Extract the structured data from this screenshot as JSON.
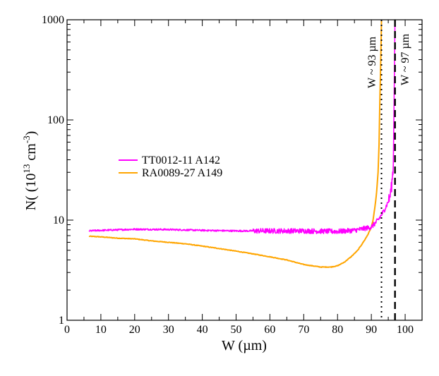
{
  "chart_data": {
    "type": "line",
    "yscale": "log",
    "xlim": [
      0,
      105
    ],
    "ylim": [
      1,
      1000
    ],
    "xticks": [
      0,
      10,
      20,
      30,
      40,
      50,
      60,
      70,
      80,
      90,
      100
    ],
    "yticks": [
      1,
      10,
      100,
      1000
    ],
    "xlabel": "W (µm)",
    "ylabel": {
      "prefix": "N( (10",
      "exp1": "13",
      "mid": " cm",
      "exp2": "-3",
      "suffix": ")"
    },
    "legend_position": "center-left",
    "series": [
      {
        "name": "TT0012-11 A142",
        "color": "#ff00ff",
        "noisy": true,
        "x": [
          6.5,
          10,
          15,
          20,
          30,
          40,
          50,
          60,
          70,
          80,
          85,
          90,
          92,
          93.5,
          94.5,
          95.5,
          96,
          96.5,
          97
        ],
        "y": [
          7.8,
          7.9,
          8.0,
          8.1,
          8.05,
          7.9,
          7.8,
          7.8,
          7.8,
          7.7,
          7.9,
          8.5,
          10,
          12,
          14,
          17,
          22,
          35,
          1000
        ]
      },
      {
        "name": "RA0089-27 A149",
        "color": "#ffa500",
        "noisy": false,
        "x": [
          6.5,
          10,
          15,
          20,
          25,
          30,
          35,
          40,
          45,
          50,
          55,
          60,
          65,
          70,
          75,
          78,
          80,
          82,
          84,
          86,
          88,
          89,
          90,
          90.5,
          91,
          91.5,
          92,
          92.3,
          92.5,
          92.8,
          93
        ],
        "y": [
          6.9,
          6.8,
          6.6,
          6.5,
          6.2,
          6.0,
          5.8,
          5.5,
          5.2,
          4.9,
          4.6,
          4.3,
          4.0,
          3.6,
          3.4,
          3.4,
          3.5,
          3.8,
          4.3,
          5.0,
          6.3,
          7.2,
          8.5,
          10,
          13,
          18,
          30,
          60,
          150,
          400,
          1000
        ]
      }
    ],
    "vlines": [
      {
        "x": 93,
        "style": "dotted",
        "label": "W ~ 93 µm"
      },
      {
        "x": 97,
        "style": "dashed",
        "label": "W ~ 97 µm"
      }
    ]
  }
}
